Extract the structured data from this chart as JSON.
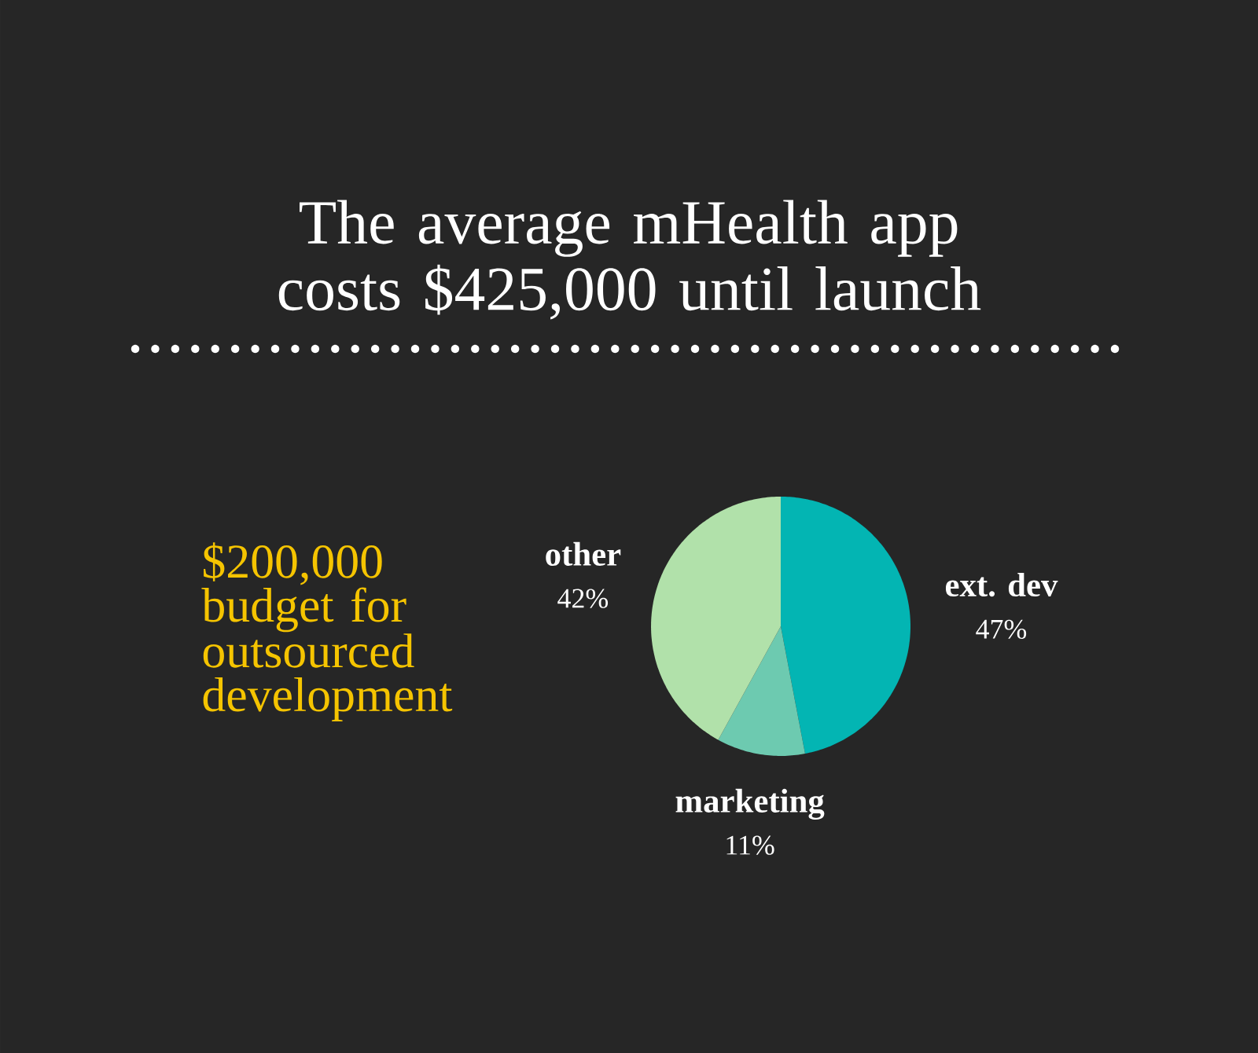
{
  "chart_data": {
    "type": "pie",
    "title": "The average mHealth app costs $425,000 until launch",
    "categories": [
      "ext. dev",
      "marketing",
      "other"
    ],
    "values": [
      47,
      11,
      42
    ],
    "colors": [
      "#03b5b3",
      "#6dcab0",
      "#b1e1aa"
    ],
    "value_labels": [
      "47%",
      "11%",
      "42%"
    ],
    "annotations": [
      "$200,000 budget for outsourced development"
    ]
  }
}
